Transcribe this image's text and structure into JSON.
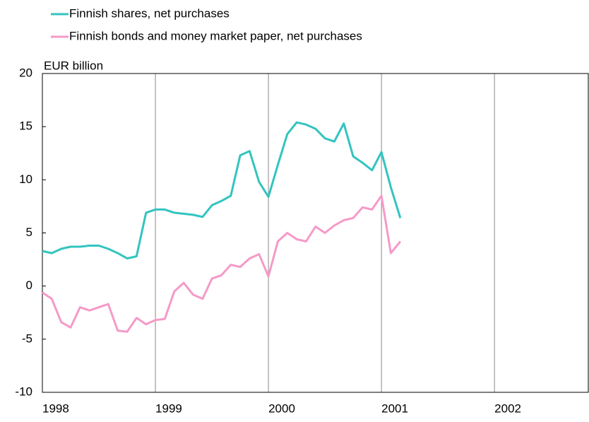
{
  "chart_data": {
    "type": "line",
    "y_label": "EUR billion",
    "x": [
      1998,
      1998.083,
      1998.167,
      1998.25,
      1998.333,
      1998.417,
      1998.5,
      1998.583,
      1998.667,
      1998.75,
      1998.833,
      1998.917,
      1999,
      1999.083,
      1999.167,
      1999.25,
      1999.333,
      1999.417,
      1999.5,
      1999.583,
      1999.667,
      1999.75,
      1999.833,
      1999.917,
      2000,
      2000.083,
      2000.167,
      2000.25,
      2000.333,
      2000.417,
      2000.5,
      2000.583,
      2000.667,
      2000.75,
      2000.833,
      2000.917,
      2001,
      2001.083,
      2001.167
    ],
    "series": [
      {
        "name": "Finnish shares, net purchases",
        "color": "#33c4c0",
        "values": [
          3.3,
          3.1,
          3.5,
          3.7,
          3.7,
          3.8,
          3.8,
          3.5,
          3.1,
          2.6,
          2.8,
          6.9,
          7.2,
          7.2,
          6.9,
          6.8,
          6.7,
          6.5,
          7.6,
          8.0,
          8.5,
          12.3,
          12.7,
          9.8,
          8.4,
          11.4,
          14.3,
          15.4,
          15.2,
          14.8,
          13.9,
          13.6,
          15.3,
          12.2,
          11.6,
          10.9,
          12.6,
          9.3,
          6.4
        ]
      },
      {
        "name": "Finnish bonds and money market paper, net purchases",
        "color": "#f59ac8",
        "values": [
          -0.6,
          -1.2,
          -3.4,
          -3.9,
          -2.0,
          -2.3,
          -2.0,
          -1.7,
          -4.2,
          -4.3,
          -3.0,
          -3.6,
          -3.2,
          -3.1,
          -0.5,
          0.3,
          -0.8,
          -1.2,
          0.7,
          1.0,
          2.0,
          1.8,
          2.6,
          3.0,
          0.9,
          4.2,
          5.0,
          4.4,
          4.2,
          5.6,
          5.0,
          5.7,
          6.2,
          6.4,
          7.4,
          7.2,
          8.5,
          3.1,
          4.2
        ]
      }
    ],
    "xlim": [
      1998,
      2002.83
    ],
    "xticks": [
      1998,
      1999,
      2000,
      2001,
      2002
    ],
    "ylim": [
      -10,
      20
    ],
    "yticks": [
      -10,
      -5,
      0,
      5,
      10,
      15,
      20
    ],
    "grid": "x",
    "legend": "top-left"
  }
}
